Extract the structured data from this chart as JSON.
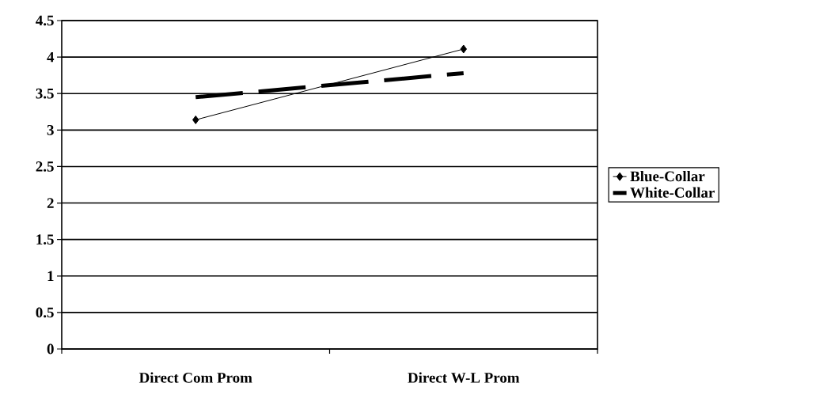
{
  "chart_data": {
    "type": "line",
    "categories": [
      "Direct Com Prom",
      "Direct W-L Prom"
    ],
    "series": [
      {
        "name": "Blue-Collar",
        "color": "#000000",
        "values": [
          3.14,
          4.11
        ],
        "marker": "diamond",
        "line_style": "solid"
      },
      {
        "name": "White-Collar",
        "color": "#000000",
        "values": [
          3.45,
          3.78
        ],
        "marker": "none",
        "line_style": "dashed"
      }
    ],
    "ylim": [
      0,
      4.5
    ],
    "yticks": [
      0,
      0.5,
      1,
      1.5,
      2,
      2.5,
      3,
      3.5,
      4,
      4.5
    ],
    "grid": "y",
    "legend": "right"
  }
}
